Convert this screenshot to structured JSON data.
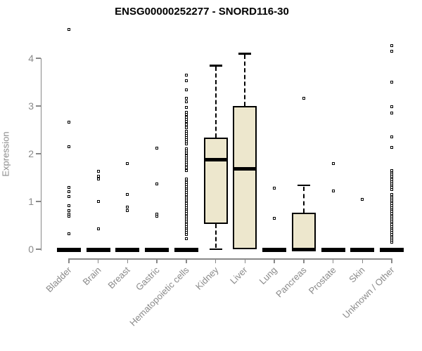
{
  "chart_data": {
    "type": "boxplot",
    "title": "ENSG00000252277 - SNORD116-30",
    "ylabel": "Expression",
    "xlabel": "",
    "yticks": [
      0,
      1,
      2,
      3,
      4
    ],
    "ylim": [
      0,
      4.7
    ],
    "grid": false,
    "legend": "none",
    "box_fill_color": "#EDE7CD",
    "box_border_color": "#000000",
    "axis_color": "#888888",
    "tick_label_color": "#8a8a8a",
    "title_color": "#000000",
    "categories": [
      {
        "label": "Bladder",
        "whisker_low": 0,
        "q1": 0,
        "median": 0,
        "q3": 0,
        "whisker_high": 0,
        "outliers": [
          4.6,
          2.66,
          2.15,
          1.29,
          1.21,
          1.1,
          0.91,
          0.81,
          0.74,
          0.69,
          0.32
        ]
      },
      {
        "label": "Brain",
        "whisker_low": 0,
        "q1": 0,
        "median": 0,
        "q3": 0,
        "whisker_high": 0,
        "outliers": [
          1.63,
          1.53,
          1.47,
          1.0,
          0.43
        ]
      },
      {
        "label": "Breast",
        "whisker_low": 0,
        "q1": 0,
        "median": 0,
        "q3": 0,
        "whisker_high": 0,
        "outliers": [
          1.79,
          1.15,
          0.88,
          0.81
        ]
      },
      {
        "label": "Gastric",
        "whisker_low": 0,
        "q1": 0,
        "median": 0,
        "q3": 0,
        "whisker_high": 0,
        "outliers": [
          2.12,
          1.37,
          0.73,
          0.69
        ]
      },
      {
        "label": "Hematopoietic cells",
        "whisker_low": 0,
        "q1": 0,
        "median": 0,
        "q3": 0,
        "whisker_high": 0,
        "outliers": [
          3.65,
          3.53,
          3.34,
          3.16,
          3.09,
          2.97,
          2.87,
          2.82,
          2.77,
          2.72,
          2.67,
          2.62,
          2.58,
          2.54,
          2.47,
          2.43,
          2.38,
          2.34,
          2.29,
          2.25,
          2.21,
          2.1,
          2.06,
          2.01,
          1.96,
          1.91,
          1.87,
          1.82,
          1.78,
          1.74,
          1.7,
          1.65,
          1.47,
          1.43,
          1.39,
          1.35,
          1.31,
          1.27,
          1.23,
          1.19,
          1.15,
          1.11,
          1.07,
          1.03,
          0.99,
          0.95,
          0.91,
          0.87,
          0.83,
          0.79,
          0.75,
          0.71,
          0.67,
          0.63,
          0.59,
          0.55,
          0.51,
          0.47,
          0.43,
          0.39,
          0.35,
          0.31,
          0.22
        ]
      },
      {
        "label": "Kidney",
        "whisker_low": 0,
        "q1": 0.53,
        "median": 1.88,
        "q3": 2.34,
        "whisker_high": 3.85,
        "outliers": []
      },
      {
        "label": "Liver",
        "whisker_low": 0,
        "q1": 0,
        "median": 1.69,
        "q3": 3.0,
        "whisker_high": 4.1,
        "outliers": []
      },
      {
        "label": "Lung",
        "whisker_low": 0,
        "q1": 0,
        "median": 0,
        "q3": 0,
        "whisker_high": 0,
        "outliers": [
          1.28,
          0.65
        ]
      },
      {
        "label": "Pancreas",
        "whisker_low": 0,
        "q1": 0,
        "median": 0,
        "q3": 0.76,
        "whisker_high": 1.34,
        "outliers": [
          3.16
        ]
      },
      {
        "label": "Prostate",
        "whisker_low": 0,
        "q1": 0,
        "median": 0,
        "q3": 0,
        "whisker_high": 0,
        "outliers": [
          1.79,
          1.22
        ]
      },
      {
        "label": "Skin",
        "whisker_low": 0,
        "q1": 0,
        "median": 0,
        "q3": 0,
        "whisker_high": 0,
        "outliers": [
          1.04
        ]
      },
      {
        "label": "Unknown / Other",
        "whisker_low": 0,
        "q1": 0,
        "median": 0,
        "q3": 0,
        "whisker_high": 0,
        "outliers": [
          4.26,
          4.15,
          3.5,
          2.99,
          2.85,
          2.35,
          2.13,
          1.65,
          1.61,
          1.57,
          1.53,
          1.49,
          1.45,
          1.41,
          1.37,
          1.33,
          1.29,
          1.25,
          1.15,
          1.11,
          1.07,
          1.03,
          0.99,
          0.95,
          0.91,
          0.87,
          0.83,
          0.79,
          0.75,
          0.71,
          0.67,
          0.63,
          0.59,
          0.55,
          0.51,
          0.47,
          0.43,
          0.39,
          0.35,
          0.31,
          0.27,
          0.23,
          0.19,
          0.15
        ]
      }
    ]
  }
}
